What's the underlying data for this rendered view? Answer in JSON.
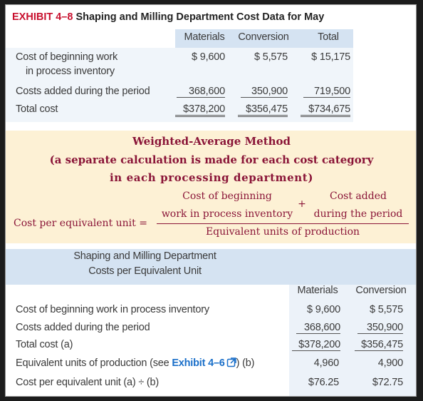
{
  "exhibit": {
    "number": "EXHIBIT 4–8",
    "title": " Shaping and Milling Department Cost Data for May"
  },
  "cost_data": {
    "headers": [
      "Materials",
      "Conversion",
      "Total"
    ],
    "rows": [
      {
        "label_line1": "Cost of beginning work",
        "label_line2": "in process inventory",
        "values": [
          "$  9,600",
          "$  5,575",
          "$  15,175"
        ]
      },
      {
        "label": "Costs added during the period",
        "values": [
          "368,600",
          "350,900",
          "719,500"
        ]
      },
      {
        "label": "Total cost",
        "values": [
          "$378,200",
          "$356,475",
          "$734,675"
        ]
      }
    ]
  },
  "method": {
    "title": "Weighted-Average Method",
    "subtitle_line1": "(a separate calculation is made for each cost category",
    "subtitle_line2": "in each processing department)",
    "lhs": "Cost per equivalent unit =",
    "num_left_line1": "Cost of beginning",
    "num_left_line2": "work in process inventory",
    "plus": "+",
    "num_right_line1": "Cost added",
    "num_right_line2": "during the period",
    "denominator": "Equivalent units of production"
  },
  "per_unit": {
    "title_line1": "Shaping and Milling Department",
    "title_line2": "Costs per Equivalent Unit",
    "headers": [
      "Materials",
      "Conversion"
    ],
    "rows": [
      {
        "label": "Cost of beginning work in process inventory",
        "values": [
          "$  9,600",
          "$  5,575"
        ]
      },
      {
        "label": "Costs added during the period",
        "values": [
          "368,600",
          "350,900"
        ]
      },
      {
        "label": "Total cost (a)",
        "values": [
          "$378,200",
          "$356,475"
        ]
      },
      {
        "label_pre": "Equivalent units of production (see ",
        "label_link": "Exhibit 4–6",
        "label_post": ") (b)",
        "values": [
          "4,960",
          "4,900"
        ]
      },
      {
        "label": "Cost per equivalent unit (a) ÷ (b)",
        "values": [
          "$76.25",
          "$72.75"
        ]
      }
    ]
  },
  "colors": {
    "exhibit_red": "#c8102e",
    "header_blue": "#d5e3f2",
    "formula_yellow": "#fdf1d5",
    "formula_text": "#8a1538",
    "link_blue": "#1a6fc9"
  }
}
